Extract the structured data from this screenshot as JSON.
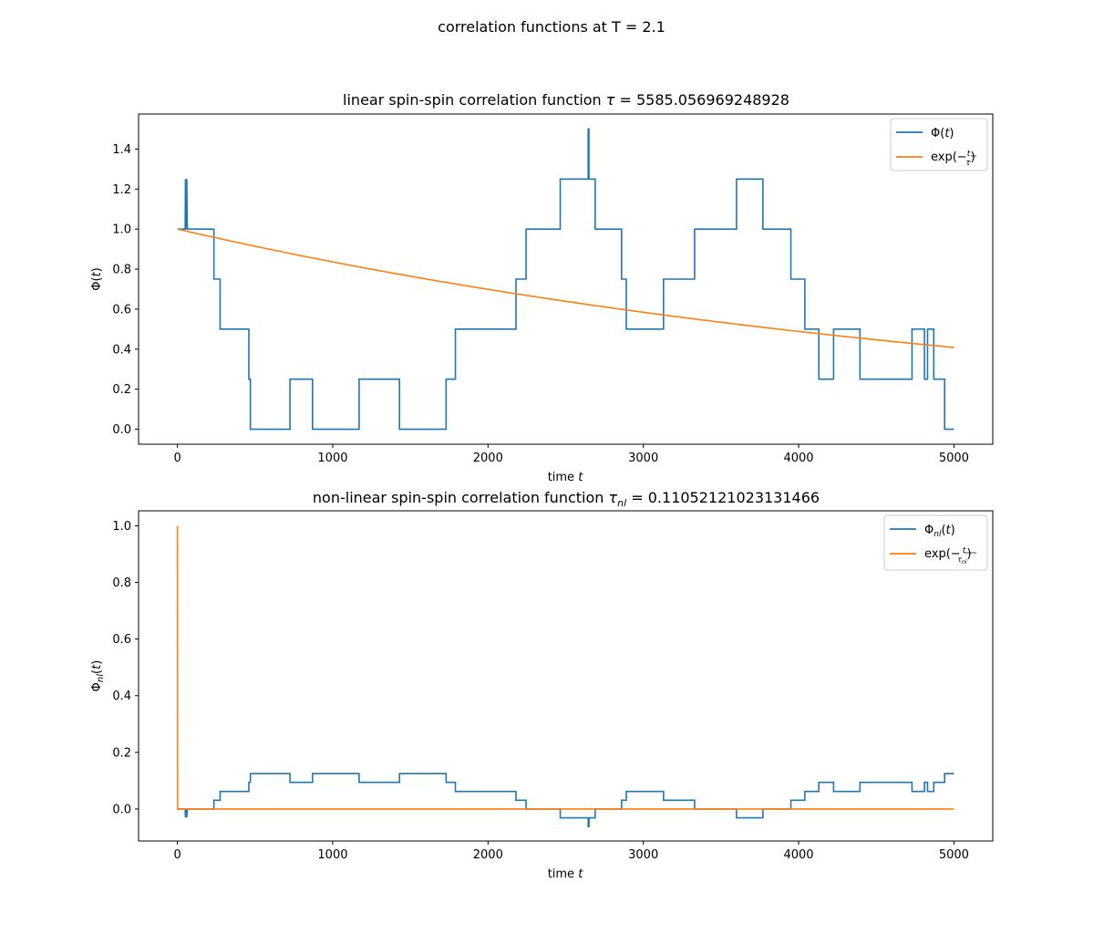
{
  "figure": {
    "suptitle": "correlation functions at T = 2.1"
  },
  "chart_data": [
    {
      "type": "line",
      "title": "linear spin-spin correlation function τ = 5585.056969248928",
      "xlabel": "time t",
      "ylabel": "Φ(t)",
      "xlim": [
        -250,
        5250
      ],
      "ylim": [
        -0.075,
        1.575
      ],
      "xticks": [
        0,
        1000,
        2000,
        3000,
        4000,
        5000
      ],
      "xtick_labels": [
        "0",
        "1000",
        "2000",
        "3000",
        "4000",
        "5000"
      ],
      "yticks": [
        0.0,
        0.2,
        0.4,
        0.6,
        0.8,
        1.0,
        1.2,
        1.4
      ],
      "ytick_labels": [
        "0.0",
        "0.2",
        "0.4",
        "0.6",
        "0.8",
        "1.0",
        "1.2",
        "1.4"
      ],
      "legend_position": "upper right",
      "grid": false,
      "series": [
        {
          "name": "Φ(t)",
          "color": "#1f77b4",
          "kind": "step",
          "points": [
            [
              0,
              1.0
            ],
            [
              50,
              1.0
            ],
            [
              52,
              1.25
            ],
            [
              57,
              1.0
            ],
            [
              60,
              1.25
            ],
            [
              64,
              1.0
            ],
            [
              235,
              1.0
            ],
            [
              235,
              0.75
            ],
            [
              275,
              0.75
            ],
            [
              275,
              0.5
            ],
            [
              460,
              0.5
            ],
            [
              460,
              0.25
            ],
            [
              470,
              0.25
            ],
            [
              470,
              0.0
            ],
            [
              725,
              0.0
            ],
            [
              725,
              0.25
            ],
            [
              870,
              0.25
            ],
            [
              870,
              0.0
            ],
            [
              1170,
              0.0
            ],
            [
              1170,
              0.25
            ],
            [
              1430,
              0.25
            ],
            [
              1430,
              0.0
            ],
            [
              1730,
              0.0
            ],
            [
              1730,
              0.25
            ],
            [
              1790,
              0.25
            ],
            [
              1790,
              0.5
            ],
            [
              2180,
              0.5
            ],
            [
              2180,
              0.75
            ],
            [
              2245,
              0.75
            ],
            [
              2245,
              1.0
            ],
            [
              2465,
              1.0
            ],
            [
              2465,
              1.25
            ],
            [
              2645,
              1.25
            ],
            [
              2645,
              1.5
            ],
            [
              2650,
              1.5
            ],
            [
              2650,
              1.25
            ],
            [
              2690,
              1.25
            ],
            [
              2690,
              1.0
            ],
            [
              2860,
              1.0
            ],
            [
              2860,
              0.75
            ],
            [
              2890,
              0.75
            ],
            [
              2890,
              0.5
            ],
            [
              3130,
              0.5
            ],
            [
              3130,
              0.75
            ],
            [
              3330,
              0.75
            ],
            [
              3330,
              1.0
            ],
            [
              3600,
              1.0
            ],
            [
              3600,
              1.25
            ],
            [
              3770,
              1.25
            ],
            [
              3770,
              1.0
            ],
            [
              3950,
              1.0
            ],
            [
              3950,
              0.75
            ],
            [
              4040,
              0.75
            ],
            [
              4040,
              0.5
            ],
            [
              4130,
              0.5
            ],
            [
              4130,
              0.25
            ],
            [
              4225,
              0.25
            ],
            [
              4225,
              0.5
            ],
            [
              4395,
              0.5
            ],
            [
              4395,
              0.25
            ],
            [
              4730,
              0.25
            ],
            [
              4730,
              0.5
            ],
            [
              4810,
              0.5
            ],
            [
              4810,
              0.25
            ],
            [
              4830,
              0.25
            ],
            [
              4830,
              0.5
            ],
            [
              4870,
              0.5
            ],
            [
              4870,
              0.25
            ],
            [
              4940,
              0.25
            ],
            [
              4940,
              0.0
            ],
            [
              5000,
              0.0
            ]
          ]
        },
        {
          "name": "exp(−t/τ)",
          "color": "#ff7f0e",
          "kind": "function",
          "function": "exp(-t/5585.056969248928)",
          "x_range": [
            0,
            5000
          ]
        }
      ]
    },
    {
      "type": "line",
      "title": "non-linear spin-spin correlation function τ_nl = 0.11052121023131466",
      "xlabel": "time t",
      "ylabel": "Φ_nl(t)",
      "xlim": [
        -250,
        5250
      ],
      "ylim": [
        -0.113,
        1.053
      ],
      "xticks": [
        0,
        1000,
        2000,
        3000,
        4000,
        5000
      ],
      "xtick_labels": [
        "0",
        "1000",
        "2000",
        "3000",
        "4000",
        "5000"
      ],
      "yticks": [
        0.0,
        0.2,
        0.4,
        0.6,
        0.8,
        1.0
      ],
      "ytick_labels": [
        "0.0",
        "0.2",
        "0.4",
        "0.6",
        "0.8",
        "1.0"
      ],
      "legend_position": "upper right",
      "grid": false,
      "series": [
        {
          "name": "Φ_nl(t)",
          "color": "#1f77b4",
          "kind": "step",
          "points": [
            [
              0,
              0.0
            ],
            [
              50,
              0.0
            ],
            [
              52,
              -0.03
            ],
            [
              57,
              0.0
            ],
            [
              60,
              -0.03
            ],
            [
              64,
              0.0
            ],
            [
              235,
              0.0
            ],
            [
              235,
              0.031
            ],
            [
              275,
              0.031
            ],
            [
              275,
              0.062
            ],
            [
              460,
              0.062
            ],
            [
              460,
              0.094
            ],
            [
              470,
              0.094
            ],
            [
              470,
              0.125
            ],
            [
              725,
              0.125
            ],
            [
              725,
              0.094
            ],
            [
              870,
              0.094
            ],
            [
              870,
              0.125
            ],
            [
              1170,
              0.125
            ],
            [
              1170,
              0.094
            ],
            [
              1430,
              0.094
            ],
            [
              1430,
              0.125
            ],
            [
              1730,
              0.125
            ],
            [
              1730,
              0.094
            ],
            [
              1790,
              0.094
            ],
            [
              1790,
              0.062
            ],
            [
              2180,
              0.062
            ],
            [
              2180,
              0.031
            ],
            [
              2245,
              0.031
            ],
            [
              2245,
              0.0
            ],
            [
              2465,
              0.0
            ],
            [
              2465,
              -0.031
            ],
            [
              2645,
              -0.031
            ],
            [
              2645,
              -0.062
            ],
            [
              2650,
              -0.062
            ],
            [
              2650,
              -0.031
            ],
            [
              2690,
              -0.031
            ],
            [
              2690,
              0.0
            ],
            [
              2860,
              0.0
            ],
            [
              2860,
              0.031
            ],
            [
              2890,
              0.031
            ],
            [
              2890,
              0.062
            ],
            [
              3130,
              0.062
            ],
            [
              3130,
              0.031
            ],
            [
              3330,
              0.031
            ],
            [
              3330,
              0.0
            ],
            [
              3600,
              0.0
            ],
            [
              3600,
              -0.031
            ],
            [
              3770,
              -0.031
            ],
            [
              3770,
              0.0
            ],
            [
              3950,
              0.0
            ],
            [
              3950,
              0.031
            ],
            [
              4040,
              0.031
            ],
            [
              4040,
              0.062
            ],
            [
              4130,
              0.062
            ],
            [
              4130,
              0.094
            ],
            [
              4225,
              0.094
            ],
            [
              4225,
              0.062
            ],
            [
              4395,
              0.062
            ],
            [
              4395,
              0.094
            ],
            [
              4730,
              0.094
            ],
            [
              4730,
              0.062
            ],
            [
              4810,
              0.062
            ],
            [
              4810,
              0.094
            ],
            [
              4830,
              0.094
            ],
            [
              4830,
              0.062
            ],
            [
              4870,
              0.062
            ],
            [
              4870,
              0.094
            ],
            [
              4940,
              0.094
            ],
            [
              4940,
              0.125
            ],
            [
              5000,
              0.125
            ]
          ]
        },
        {
          "name": "exp(−t/τ_nl)",
          "color": "#ff7f0e",
          "kind": "function",
          "function": "exp(-t/0.11052121023131466)",
          "points": [
            [
              0,
              1.0
            ],
            [
              1,
              0.0
            ],
            [
              5000,
              0.0
            ]
          ]
        }
      ]
    }
  ]
}
